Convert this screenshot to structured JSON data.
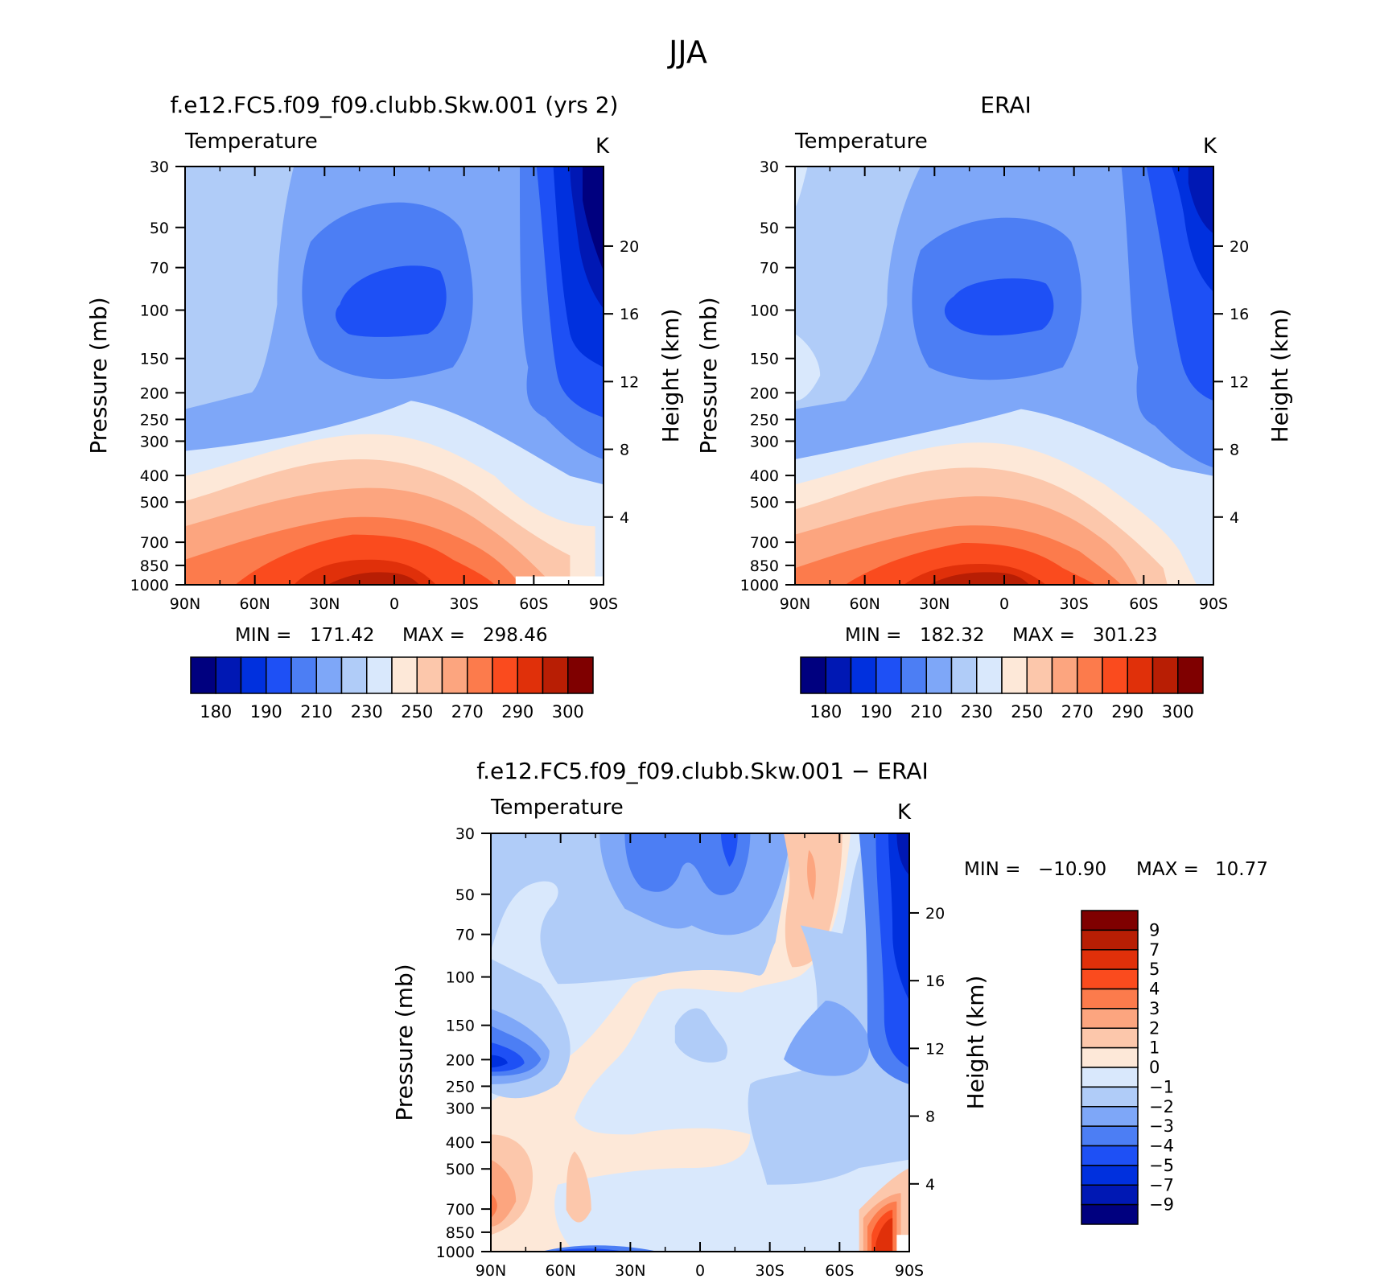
{
  "figure": {
    "title": "JJA",
    "colors": {
      "abs_colormap": [
        "#00007f",
        "#0018b4",
        "#0030de",
        "#1e50f5",
        "#4c7ef4",
        "#7ea7f8",
        "#b0ccf8",
        "#d9e8fc",
        "#fde8d8",
        "#fcc7ab",
        "#fca57f",
        "#fc7b4c",
        "#fa4b1e",
        "#e0300a",
        "#b81e04",
        "#7f0000"
      ],
      "diff_colormap": [
        "#00007f",
        "#0018b4",
        "#0030de",
        "#1e50f5",
        "#4c7ef4",
        "#7ea7f8",
        "#b0ccf8",
        "#d9e8fc",
        "#fde8d8",
        "#fcc7ab",
        "#fca57f",
        "#fc7b4c",
        "#fa4b1e",
        "#e0300a",
        "#b81e04",
        "#7f0000"
      ]
    }
  },
  "chart_data": [
    {
      "type": "heatmap",
      "title": "f.e12.FC5.f09_f09.clubb.Skw.001 (yrs 2)",
      "subtitle": "Temperature",
      "units": "K",
      "xlabel": "",
      "ylabel": "Pressure (mb)",
      "ylabel_right": "Height (km)",
      "x_ticks": [
        "90N",
        "60N",
        "30N",
        "0",
        "30S",
        "60S",
        "90S"
      ],
      "y_ticks": [
        "30",
        "50",
        "70",
        "100",
        "150",
        "200",
        "250",
        "300",
        "400",
        "500",
        "700",
        "850",
        "1000"
      ],
      "y_ticks_right": [
        "4",
        "8",
        "12",
        "16",
        "20"
      ],
      "y_scale": "log",
      "ylim": [
        1000,
        30
      ],
      "min_label": "MIN =",
      "min": "171.42",
      "max_label": "MAX =",
      "max": "298.46",
      "colorbar": {
        "orientation": "horizontal",
        "labels": [
          "180",
          "190",
          "210",
          "230",
          "250",
          "270",
          "290",
          "300"
        ]
      },
      "values": [
        {
          "at": "100 mb, 10N",
          "color_index": 3
        },
        {
          "at": "100 mb, 90N",
          "color_index": 6
        },
        {
          "at": "50 mb, 90S",
          "color_index": 0
        },
        {
          "at": "1000 mb, 25N",
          "color_index": 15
        },
        {
          "at": "300 mb, 0",
          "color_index": 8
        }
      ]
    },
    {
      "type": "heatmap",
      "title": "ERAI",
      "subtitle": "Temperature",
      "units": "K",
      "xlabel": "",
      "ylabel": "Pressure (mb)",
      "ylabel_right": "Height (km)",
      "x_ticks": [
        "90N",
        "60N",
        "30N",
        "0",
        "30S",
        "60S",
        "90S"
      ],
      "y_ticks": [
        "30",
        "50",
        "70",
        "100",
        "150",
        "200",
        "250",
        "300",
        "400",
        "500",
        "700",
        "850",
        "1000"
      ],
      "y_ticks_right": [
        "4",
        "8",
        "12",
        "16",
        "20"
      ],
      "y_scale": "log",
      "ylim": [
        1000,
        30
      ],
      "min_label": "MIN =",
      "min": "182.32",
      "max_label": "MAX =",
      "max": "301.23",
      "colorbar": {
        "orientation": "horizontal",
        "labels": [
          "180",
          "190",
          "210",
          "230",
          "250",
          "270",
          "290",
          "300"
        ]
      },
      "values": [
        {
          "at": "100 mb, 10N",
          "color_index": 3
        },
        {
          "at": "150 mb, 90N",
          "color_index": 7
        },
        {
          "at": "50 mb, 90S",
          "color_index": 2
        },
        {
          "at": "1000 mb, 25N",
          "color_index": 15
        }
      ]
    },
    {
      "type": "heatmap",
      "title": "f.e12.FC5.f09_f09.clubb.Skw.001 − ERAI",
      "subtitle": "Temperature",
      "units": "K",
      "xlabel": "",
      "ylabel": "Pressure (mb)",
      "ylabel_right": "Height (km)",
      "x_ticks": [
        "90N",
        "60N",
        "30N",
        "0",
        "30S",
        "60S",
        "90S"
      ],
      "y_ticks": [
        "30",
        "50",
        "70",
        "100",
        "150",
        "200",
        "250",
        "300",
        "400",
        "500",
        "700",
        "850",
        "1000"
      ],
      "y_ticks_right": [
        "4",
        "8",
        "12",
        "16",
        "20"
      ],
      "y_scale": "log",
      "ylim": [
        1000,
        30
      ],
      "min_label": "MIN =",
      "min": "−10.90",
      "max_label": "MAX =",
      "max": "10.77",
      "colorbar": {
        "orientation": "vertical",
        "labels": [
          "9",
          "7",
          "5",
          "4",
          "3",
          "2",
          "1",
          "0",
          "−1",
          "−2",
          "−3",
          "−4",
          "−5",
          "−7",
          "−9"
        ]
      },
      "values": [
        {
          "at": "200 mb, 85N",
          "color_index": 1
        },
        {
          "at": "30 mb, 90S",
          "color_index": 0
        },
        {
          "at": "800 mb, 80S",
          "color_index": 14
        },
        {
          "at": "50 mb, 55S",
          "color_index": 10
        },
        {
          "at": "300 mb, 0",
          "color_index": 7
        }
      ]
    }
  ]
}
